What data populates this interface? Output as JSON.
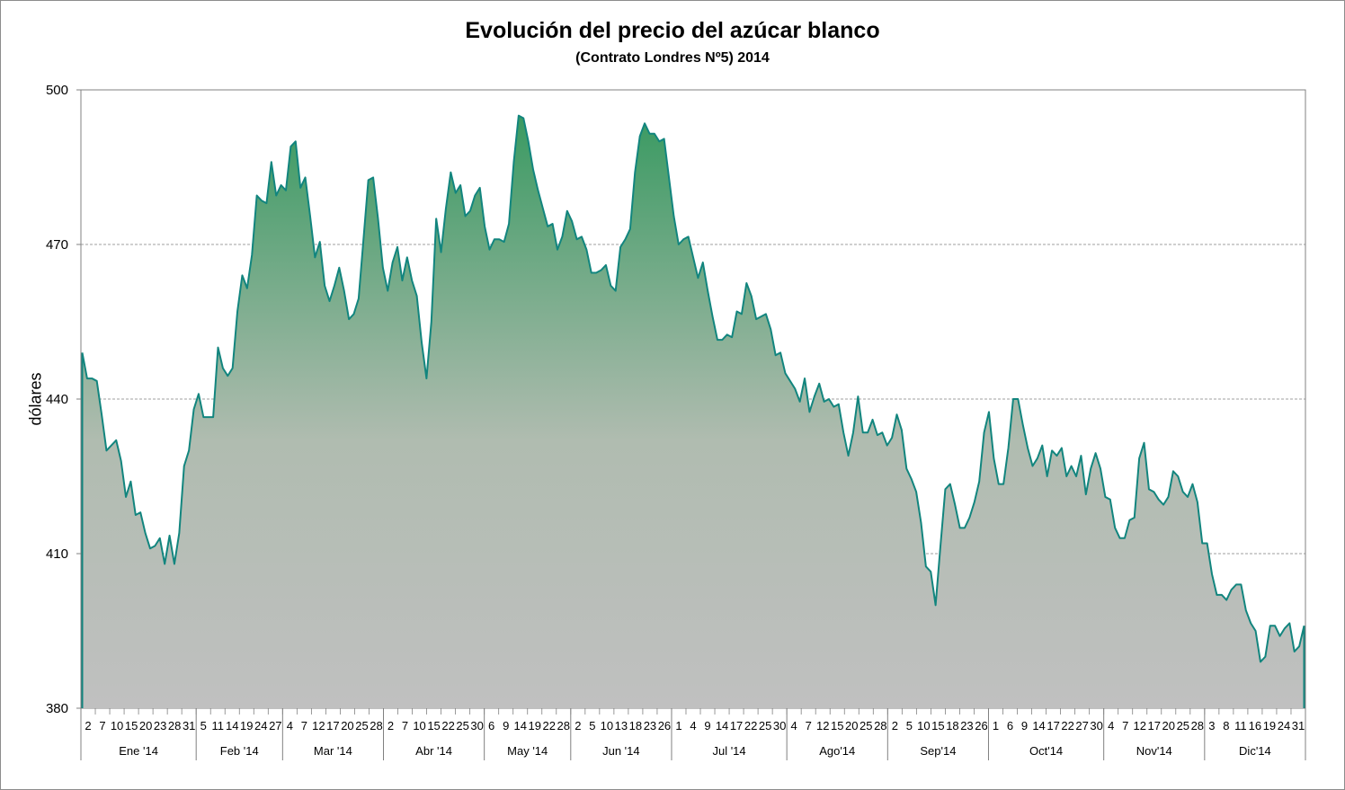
{
  "chart_data": {
    "type": "area",
    "title": "Evolución del precio del azúcar blanco",
    "subtitle": "(Contrato Londres Nº5)  2014",
    "xlabel": "",
    "ylabel": "dólares",
    "ylim": [
      380,
      500
    ],
    "yticks": [
      380,
      410,
      440,
      470,
      500
    ],
    "grid": true,
    "legend": "none",
    "colors": {
      "line": "#12857e",
      "fill_top": "#3a9a62",
      "fill_bottom": "#c0c0c0",
      "grid": "#808080",
      "axis": "#808080"
    },
    "months": [
      {
        "label": "Ene '14",
        "days": [
          "2",
          "7",
          "10",
          "15",
          "20",
          "23",
          "28",
          "31"
        ]
      },
      {
        "label": "Feb '14",
        "days": [
          "5",
          "11",
          "14",
          "19",
          "24",
          "27"
        ]
      },
      {
        "label": "Mar '14",
        "days": [
          "4",
          "7",
          "12",
          "17",
          "20",
          "25",
          "28"
        ]
      },
      {
        "label": "Abr '14",
        "days": [
          "2",
          "7",
          "10",
          "15",
          "22",
          "25",
          "30"
        ]
      },
      {
        "label": "May '14",
        "days": [
          "6",
          "9",
          "14",
          "19",
          "22",
          "28"
        ]
      },
      {
        "label": "Jun '14",
        "days": [
          "2",
          "5",
          "10",
          "13",
          "18",
          "23",
          "26"
        ]
      },
      {
        "label": "Jul '14",
        "days": [
          "1",
          "4",
          "9",
          "14",
          "17",
          "22",
          "25",
          "30"
        ]
      },
      {
        "label": "Ago'14",
        "days": [
          "4",
          "7",
          "12",
          "15",
          "20",
          "25",
          "28"
        ]
      },
      {
        "label": "Sep'14",
        "days": [
          "2",
          "5",
          "10",
          "15",
          "18",
          "23",
          "26"
        ]
      },
      {
        "label": "Oct'14",
        "days": [
          "1",
          "6",
          "9",
          "14",
          "17",
          "22",
          "27",
          "30"
        ]
      },
      {
        "label": "Nov'14",
        "days": [
          "4",
          "7",
          "12",
          "17",
          "20",
          "25",
          "28"
        ]
      },
      {
        "label": "Dic'14",
        "days": [
          "3",
          "8",
          "11",
          "16",
          "19",
          "24",
          "31"
        ]
      }
    ],
    "series": [
      {
        "values": [
          449,
          444,
          444,
          443.5,
          437,
          430,
          431,
          432,
          428,
          421,
          424,
          417.5,
          418,
          414,
          411,
          411.5,
          413,
          408,
          413.5,
          408,
          414,
          427,
          430,
          438,
          441,
          436.5,
          436.5,
          436.5,
          450,
          446,
          444.5,
          446,
          457,
          464,
          461.5,
          468,
          479.5,
          478.5,
          478,
          486,
          479.5,
          481.5,
          480.5,
          489,
          490,
          481,
          483,
          475.5,
          467.5,
          470.5,
          462,
          459,
          462,
          465.5,
          461,
          455.5,
          456.5,
          459.5,
          471,
          482.5,
          483,
          475,
          465.5,
          461,
          466.5,
          469.5,
          463,
          467.5,
          463,
          460,
          451,
          444,
          455,
          475,
          468.5,
          477,
          484,
          480,
          481.5,
          475.5,
          476.5,
          479.5,
          481,
          473.5,
          469,
          471,
          471,
          470.5,
          474,
          486,
          495,
          494.5,
          490,
          484.5,
          480.5,
          477,
          473.5,
          474,
          469,
          471.5,
          476.5,
          474.5,
          471,
          471.5,
          469,
          464.5,
          464.5,
          465,
          466,
          462,
          461,
          469.5,
          471,
          473,
          484,
          491,
          493.5,
          491.5,
          491.5,
          490,
          490.5,
          483,
          475.5,
          470,
          471,
          471.5,
          467.5,
          463.5,
          466.5,
          461,
          456,
          451.5,
          451.5,
          452.5,
          452,
          457,
          456.5,
          462.5,
          460,
          455.5,
          456,
          456.5,
          453.5,
          448.5,
          449,
          445,
          443.5,
          442,
          439.5,
          444,
          437.5,
          440.5,
          443,
          439.5,
          440,
          438.5,
          439,
          433.5,
          429,
          433.5,
          440.5,
          433.5,
          433.5,
          436,
          433,
          433.5,
          431,
          432.5,
          437,
          434,
          426.5,
          424.5,
          422,
          416,
          407.5,
          406.5,
          400,
          411.5,
          422.5,
          423.5,
          419.5,
          415,
          415,
          417,
          420,
          424,
          433.5,
          437.5,
          428.5,
          423.5,
          423.5,
          430.5,
          440,
          440,
          435,
          430.5,
          427,
          428.5,
          431,
          425,
          430,
          429,
          430.5,
          425,
          427,
          425,
          429,
          421.5,
          426.5,
          429.5,
          426.5,
          421,
          420.5,
          415,
          413,
          413,
          416.5,
          417,
          428.5,
          431.5,
          422.5,
          422,
          420.5,
          419.5,
          421,
          426,
          425,
          422,
          421,
          423.5,
          420,
          412,
          412,
          406,
          402,
          402,
          401,
          403,
          404,
          404,
          399,
          396.5,
          395,
          389,
          390,
          396,
          396,
          394,
          395.5,
          396.5,
          391,
          392,
          396
        ]
      }
    ]
  }
}
